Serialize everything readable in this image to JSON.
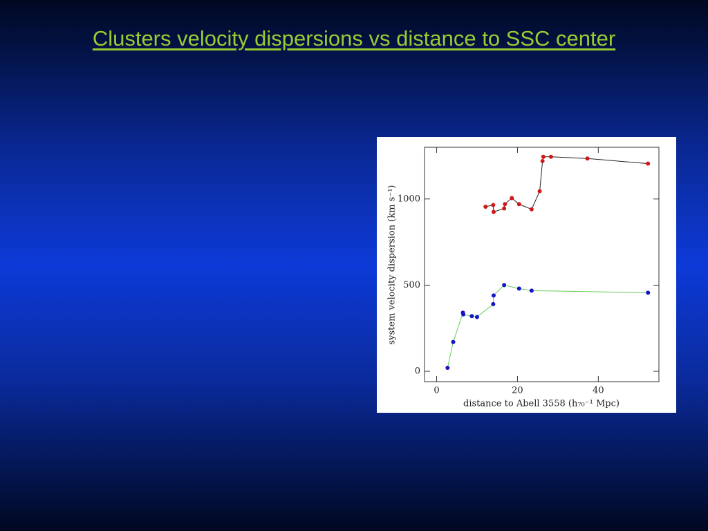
{
  "slide": {
    "title": "Clusters velocity dispersions vs distance to SSC center"
  },
  "chart_data": {
    "type": "line",
    "xlabel": "distance to Abell 3558 (h₇₀⁻¹ Mpc)",
    "ylabel": "system velocity dispersion (km s⁻¹)",
    "xlim": [
      -3,
      55
    ],
    "ylim": [
      -60,
      1300
    ],
    "xticks": [
      0,
      20,
      40
    ],
    "yticks": [
      0,
      500,
      1000
    ],
    "series": [
      {
        "color": "#d01818",
        "line_color": "#222222",
        "x": [
          12.1,
          14.0,
          14.1,
          16.7,
          16.9,
          18.6,
          20.4,
          23.5,
          25.5,
          26.2,
          26.4,
          28.3,
          37.3,
          52.3
        ],
        "values": [
          955,
          965,
          925,
          945,
          970,
          1005,
          970,
          940,
          1045,
          1220,
          1245,
          1245,
          1235,
          1205
        ]
      },
      {
        "color": "#1414c8",
        "line_color": "#66cc55",
        "x": [
          2.7,
          4.1,
          6.5,
          6.6,
          8.7,
          10.0,
          14.0,
          14.1,
          16.7,
          20.4,
          23.5,
          52.3
        ],
        "values": [
          20,
          170,
          340,
          330,
          320,
          315,
          390,
          440,
          500,
          480,
          468,
          456
        ]
      }
    ]
  }
}
